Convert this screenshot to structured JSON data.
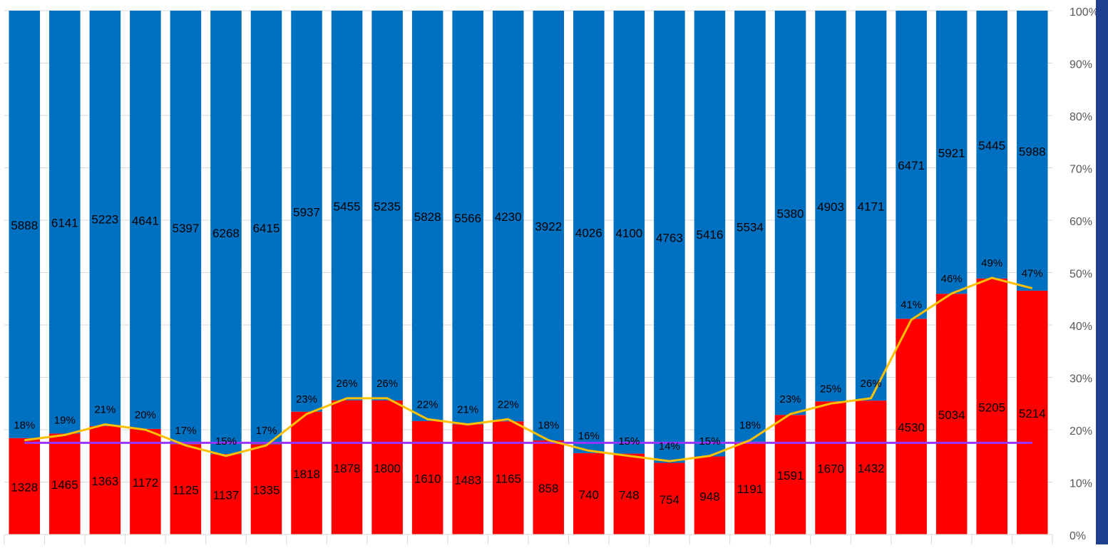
{
  "chart_data": {
    "type": "bar",
    "stacked": "percent",
    "categories": [
      "",
      "",
      "",
      "",
      "",
      "",
      "",
      "",
      "",
      "",
      "",
      "",
      "",
      "",
      "",
      "",
      "",
      "",
      "",
      "",
      "",
      "",
      "",
      "",
      "",
      ""
    ],
    "series": [
      {
        "color": "#ff0000",
        "values": [
          1328,
          1465,
          1363,
          1172,
          1125,
          1137,
          1335,
          1818,
          1878,
          1800,
          1610,
          1483,
          1165,
          858,
          740,
          748,
          754,
          948,
          1191,
          1591,
          1670,
          1432,
          4530,
          5034,
          5205,
          5214
        ]
      },
      {
        "color": "#0070c0",
        "values": [
          5888,
          6141,
          5223,
          4641,
          5397,
          6268,
          6415,
          5937,
          5455,
          5235,
          5828,
          5566,
          4230,
          3922,
          4026,
          4100,
          4763,
          5416,
          5534,
          5380,
          4903,
          4171,
          6471,
          5921,
          5445,
          5988
        ]
      }
    ],
    "line": {
      "color": "#ffc000",
      "labels": [
        "18%",
        "19%",
        "21%",
        "20%",
        "17%",
        "15%",
        "17%",
        "23%",
        "26%",
        "26%",
        "22%",
        "21%",
        "22%",
        "18%",
        "16%",
        "15%",
        "14%",
        "15%",
        "18%",
        "23%",
        "25%",
        "26%",
        "41%",
        "46%",
        "49%",
        "47%"
      ]
    },
    "reference_line": {
      "color": "#9933ff",
      "value": 0.175
    },
    "y_axis": {
      "position": "right",
      "ticks": [
        "0%",
        "10%",
        "20%",
        "30%",
        "40%",
        "50%",
        "60%",
        "70%",
        "80%",
        "90%",
        "100%"
      ],
      "range": [
        0,
        1
      ]
    },
    "grid": true,
    "legend": "none"
  }
}
